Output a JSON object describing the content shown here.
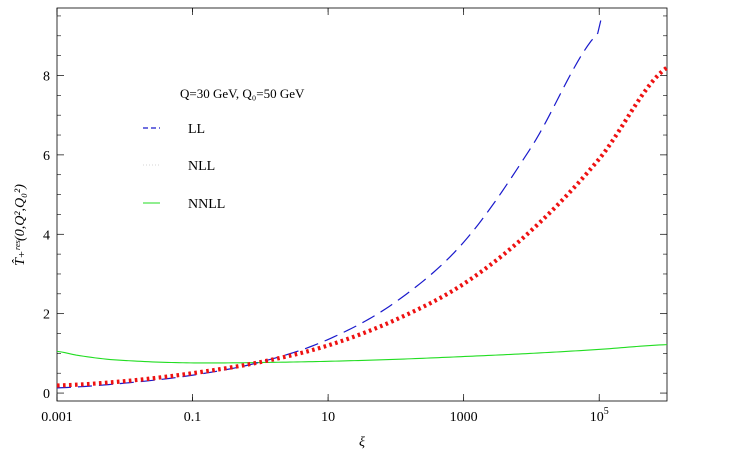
{
  "chart_data": {
    "type": "line",
    "xlabel": "ξ",
    "ylabel": "T̂₊ʳᵉˢ(0,Q²,Q₀²)",
    "x_scale": "log",
    "xlim": [
      0.001,
      1000000
    ],
    "ylim": [
      -0.2,
      9.7
    ],
    "x_ticks": [
      {
        "value": 0.001,
        "label": "0.001"
      },
      {
        "value": 0.1,
        "label": "0.1"
      },
      {
        "value": 10,
        "label": "10"
      },
      {
        "value": 1000,
        "label": "1000"
      },
      {
        "value": 100000,
        "label": "10",
        "exponent": "5"
      }
    ],
    "y_ticks": [
      {
        "value": 0,
        "label": "0"
      },
      {
        "value": 2,
        "label": "2"
      },
      {
        "value": 4,
        "label": "4"
      },
      {
        "value": 6,
        "label": "6"
      },
      {
        "value": 8,
        "label": "8"
      }
    ],
    "annotation": "Q=30 GeV, Q₀=50 GeV",
    "legend_position": "top-left",
    "series": [
      {
        "name": "LL",
        "color": "#1a1acc",
        "style": "dashed",
        "x": [
          0.001,
          0.01,
          0.1,
          1,
          10,
          100,
          1000,
          10000,
          100000,
          120000
        ],
        "y": [
          0.13,
          0.25,
          0.45,
          0.78,
          1.35,
          2.3,
          3.8,
          6.2,
          9.1,
          9.45
        ]
      },
      {
        "name": "NLL",
        "color": "#ee1111",
        "style": "dotted",
        "x": [
          0.001,
          0.01,
          0.1,
          1,
          10,
          100,
          1000,
          10000,
          100000,
          1000000
        ],
        "y": [
          0.19,
          0.3,
          0.5,
          0.78,
          1.2,
          1.85,
          2.75,
          4.1,
          5.9,
          8.2
        ]
      },
      {
        "name": "NNLL",
        "color": "#22dd22",
        "style": "solid",
        "x": [
          0.001,
          0.002,
          0.005,
          0.01,
          0.03,
          0.1,
          0.3,
          1,
          10,
          100,
          1000,
          10000,
          100000,
          1000000
        ],
        "y": [
          1.05,
          0.95,
          0.86,
          0.82,
          0.78,
          0.76,
          0.76,
          0.77,
          0.8,
          0.85,
          0.92,
          1.0,
          1.1,
          1.22
        ]
      }
    ]
  }
}
